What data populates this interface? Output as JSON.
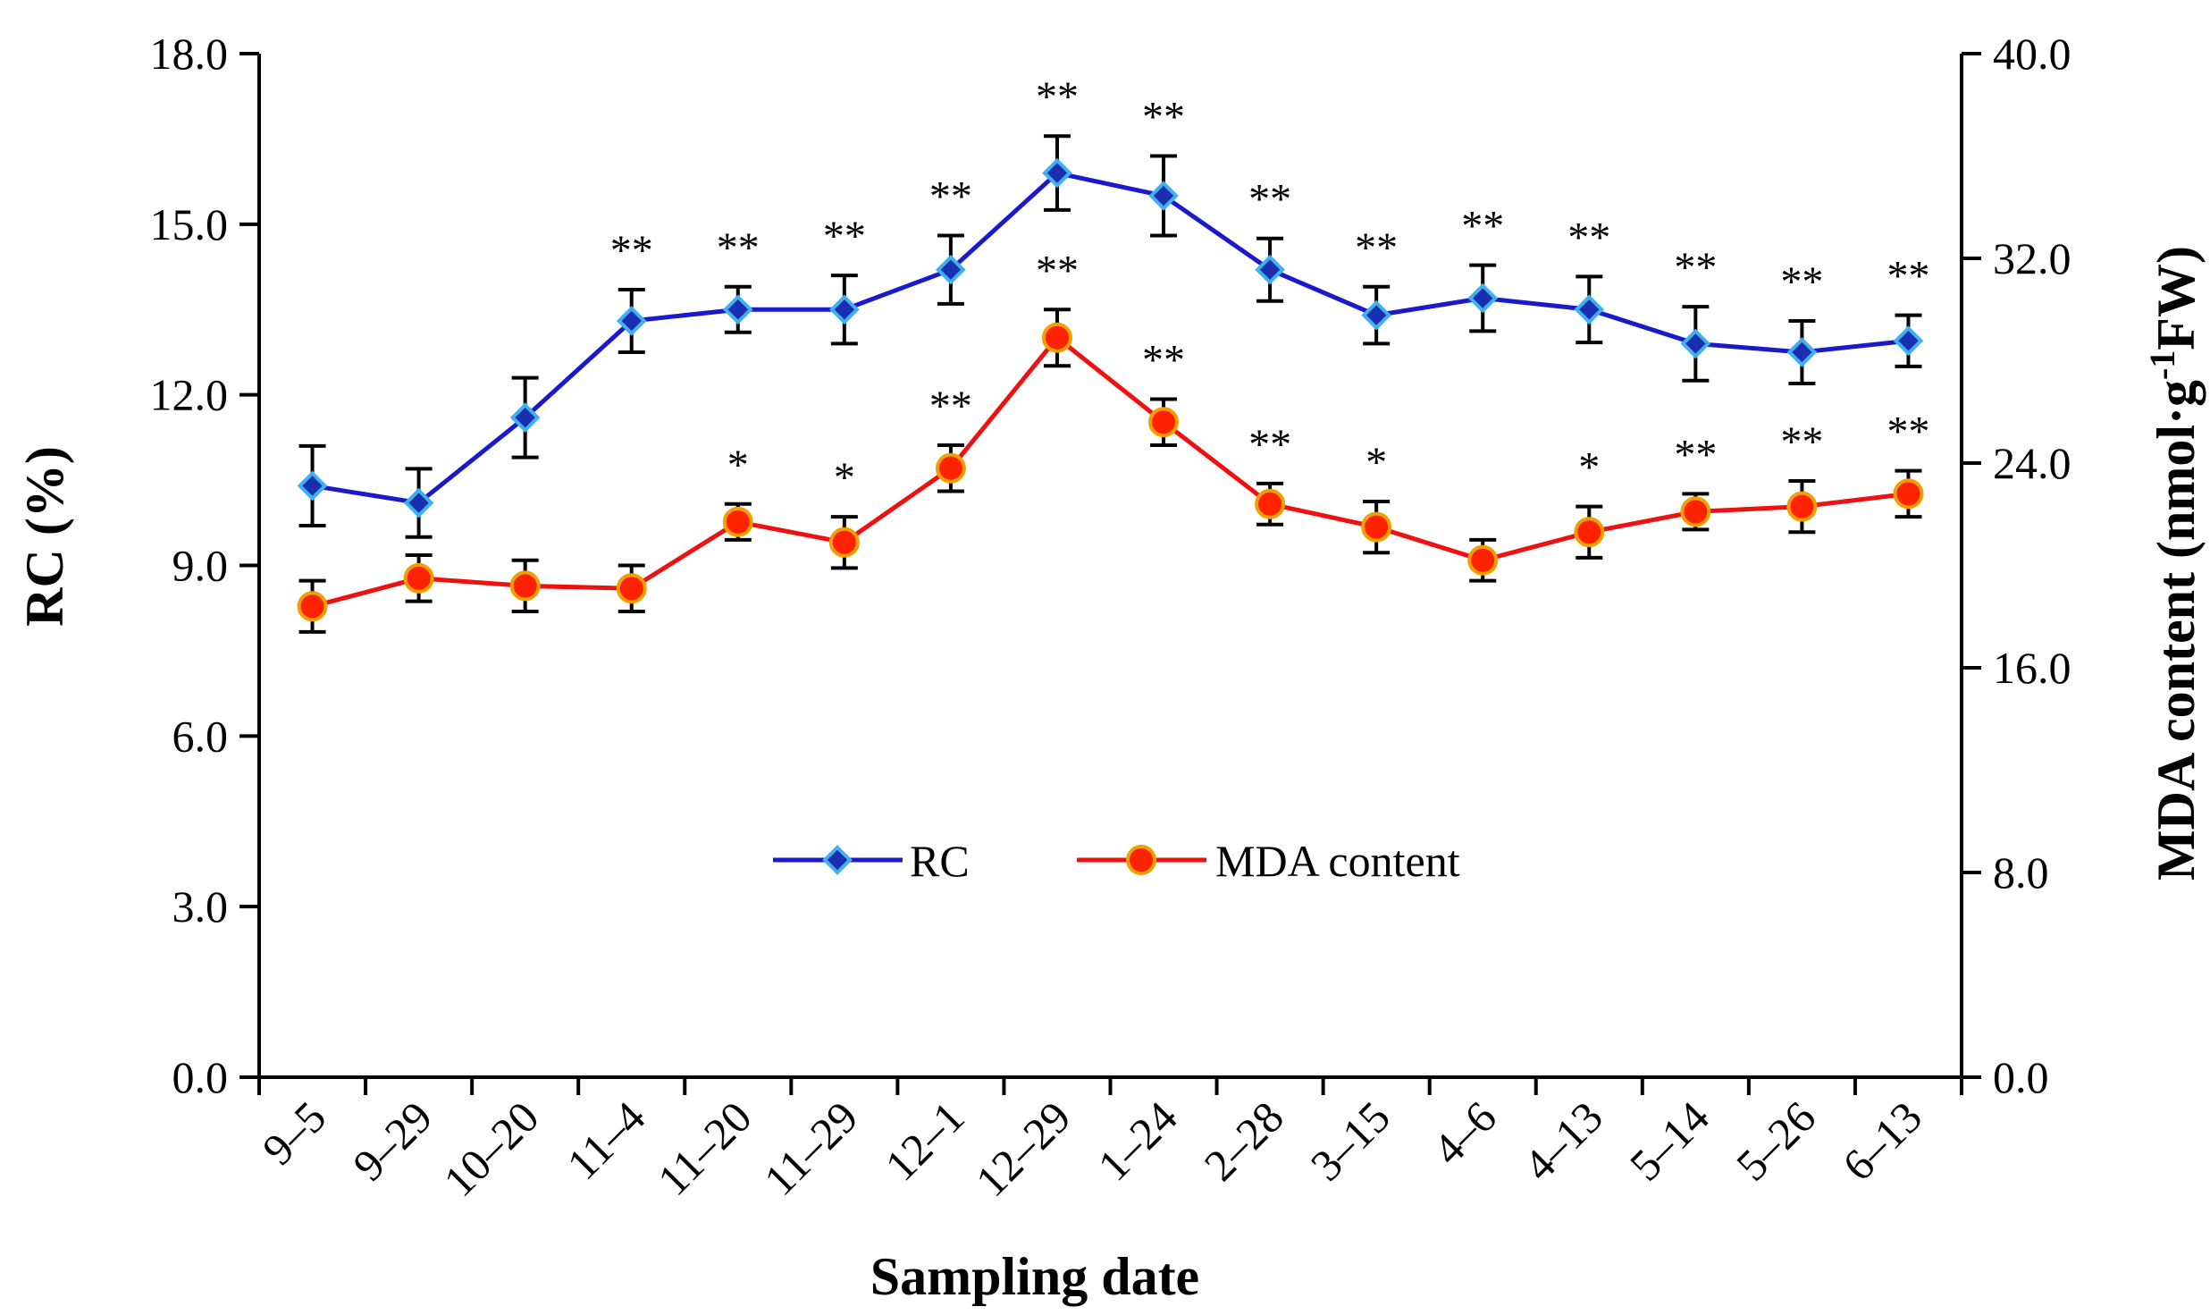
{
  "chart_data": {
    "type": "line",
    "categories": [
      "9-5",
      "9-29",
      "10-20",
      "11-4",
      "11-20",
      "11-29",
      "12-1",
      "12-29",
      "1-24",
      "2-28",
      "3-15",
      "4-6",
      "4-13",
      "5-14",
      "5-26",
      "6-13"
    ],
    "category_labels": [
      "9–5",
      "9–29",
      "10–20",
      "11–4",
      "11–20",
      "11–29",
      "12–1",
      "12–29",
      "1–24",
      "2–28",
      "3–15",
      "4–6",
      "4–13",
      "5–14",
      "5–26",
      "6–13"
    ],
    "xlabel": "Sampling date",
    "ylabel_left": "RC (%)",
    "ylabel_right": {
      "prefix": "MDA content (nmol·g",
      "sup": "-1",
      "suffix": "FW)"
    },
    "ylim_left": [
      0,
      18
    ],
    "ylim_right": [
      0,
      40
    ],
    "left_ticks": [
      "0.0",
      "3.0",
      "6.0",
      "9.0",
      "12.0",
      "15.0",
      "18.0"
    ],
    "right_ticks": [
      "0.0",
      "8.0",
      "16.0",
      "24.0",
      "32.0",
      "40.0"
    ],
    "grid": false,
    "legend_position": "center",
    "series": [
      {
        "name": "RC",
        "axis": "left",
        "color": "#1a1acc",
        "marker_color": "#2080d0",
        "marker": "diamond",
        "values": [
          10.4,
          10.1,
          11.6,
          13.3,
          13.5,
          13.5,
          14.2,
          15.9,
          15.5,
          14.2,
          13.4,
          13.7,
          13.5,
          12.9,
          12.75,
          12.95
        ],
        "errors": [
          0.7,
          0.6,
          0.7,
          0.55,
          0.4,
          0.6,
          0.6,
          0.65,
          0.7,
          0.55,
          0.5,
          0.58,
          0.58,
          0.65,
          0.55,
          0.45
        ],
        "significance": [
          "",
          "",
          "",
          "**",
          "**",
          "**",
          "**",
          "**",
          "**",
          "**",
          "**",
          "**",
          "**",
          "**",
          "**",
          "**"
        ]
      },
      {
        "name": "MDA content",
        "axis": "right",
        "color": "#ee1111",
        "marker_color": "#ff2200",
        "marker_edge": "#f0a000",
        "marker": "circle",
        "values": [
          18.4,
          19.5,
          19.2,
          19.1,
          21.7,
          20.9,
          23.8,
          28.9,
          25.6,
          22.4,
          21.5,
          20.2,
          21.3,
          22.1,
          22.3,
          22.8
        ],
        "errors": [
          1.0,
          0.9,
          1.0,
          0.9,
          0.7,
          1.0,
          0.9,
          1.1,
          0.9,
          0.8,
          1.0,
          0.8,
          1.0,
          0.7,
          1.0,
          0.9
        ],
        "significance": [
          "",
          "",
          "",
          "",
          "*",
          "*",
          "**",
          "**",
          "**",
          "**",
          "*",
          "",
          "*",
          "**",
          "**",
          "**"
        ]
      }
    ]
  }
}
